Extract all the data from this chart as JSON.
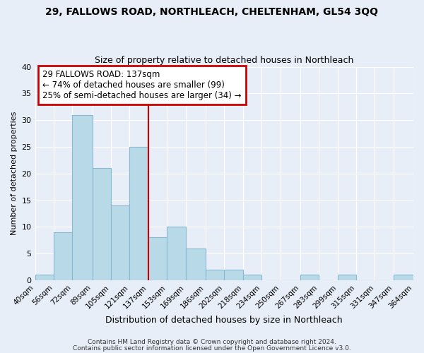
{
  "title1": "29, FALLOWS ROAD, NORTHLEACH, CHELTENHAM, GL54 3QQ",
  "title2": "Size of property relative to detached houses in Northleach",
  "xlabel": "Distribution of detached houses by size in Northleach",
  "ylabel": "Number of detached properties",
  "bar_left_edges": [
    40,
    56,
    72,
    89,
    105,
    121,
    137,
    153,
    169,
    186,
    202,
    218,
    234,
    250,
    267,
    283,
    299,
    315,
    331,
    347
  ],
  "bar_widths": [
    16,
    16,
    17,
    16,
    16,
    16,
    16,
    16,
    17,
    16,
    16,
    16,
    16,
    17,
    16,
    16,
    16,
    16,
    16,
    17
  ],
  "bar_heights": [
    1,
    9,
    31,
    21,
    14,
    25,
    8,
    10,
    6,
    2,
    2,
    1,
    0,
    0,
    1,
    0,
    1,
    0,
    0,
    1
  ],
  "tick_labels": [
    "40sqm",
    "56sqm",
    "72sqm",
    "89sqm",
    "105sqm",
    "121sqm",
    "137sqm",
    "153sqm",
    "169sqm",
    "186sqm",
    "202sqm",
    "218sqm",
    "234sqm",
    "250sqm",
    "267sqm",
    "283sqm",
    "299sqm",
    "315sqm",
    "331sqm",
    "347sqm",
    "364sqm"
  ],
  "bar_color": "#b8d9e8",
  "bar_edge_color": "#8ab8cf",
  "vline_x": 137,
  "vline_color": "#cc0000",
  "annotation_title": "29 FALLOWS ROAD: 137sqm",
  "annotation_line1": "← 74% of detached houses are smaller (99)",
  "annotation_line2": "25% of semi-detached houses are larger (34) →",
  "annotation_box_edgecolor": "#cc0000",
  "ylim": [
    0,
    40
  ],
  "yticks": [
    0,
    5,
    10,
    15,
    20,
    25,
    30,
    35,
    40
  ],
  "footer1": "Contains HM Land Registry data © Crown copyright and database right 2024.",
  "footer2": "Contains public sector information licensed under the Open Government Licence v3.0.",
  "bg_color": "#e8eef8",
  "plot_bg_color": "#e8eef8",
  "grid_color": "#ffffff",
  "title1_fontsize": 10,
  "title2_fontsize": 9,
  "xlabel_fontsize": 9,
  "ylabel_fontsize": 8,
  "tick_fontsize": 7.5,
  "footer_fontsize": 6.5
}
